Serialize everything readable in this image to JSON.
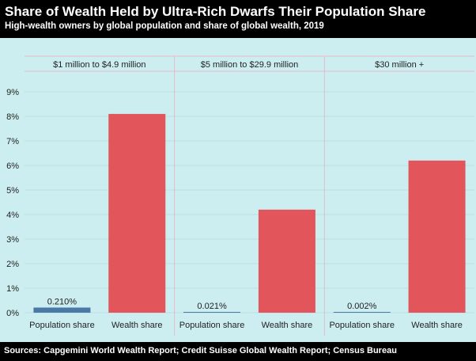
{
  "title": "Share of Wealth Held by Ultra-Rich Dwarfs Their Population Share",
  "subtitle": "High-wealth owners by global population and share of global wealth, 2019",
  "source": "Sources: Capgemini World Wealth Report; Credit Suisse Global Wealth Report; Census Bureau",
  "colors": {
    "background": "#cdeef0",
    "population": "#4a79a5",
    "wealth": "#e2565b",
    "grid": "#bcdde0",
    "panel_border": "#e6b9c8"
  },
  "chart_data": {
    "type": "bar",
    "yticks": [
      "0%",
      "1%",
      "2%",
      "3%",
      "4%",
      "5%",
      "6%",
      "7%",
      "8%",
      "9%"
    ],
    "ylim": [
      0,
      9.5
    ],
    "grid": true,
    "panels": [
      {
        "label": "$1 million to $4.9 million",
        "categories": [
          "Population share",
          "Wealth share"
        ],
        "values": [
          0.21,
          8.1
        ],
        "data_labels": [
          "0.210%",
          ""
        ]
      },
      {
        "label": "$5 million to $29.9 million",
        "categories": [
          "Population share",
          "Wealth share"
        ],
        "values": [
          0.021,
          4.2
        ],
        "data_labels": [
          "0.021%",
          ""
        ]
      },
      {
        "label": "$30 million +",
        "categories": [
          "Population share",
          "Wealth share"
        ],
        "values": [
          0.002,
          6.2
        ],
        "data_labels": [
          "0.002%",
          ""
        ]
      }
    ]
  }
}
